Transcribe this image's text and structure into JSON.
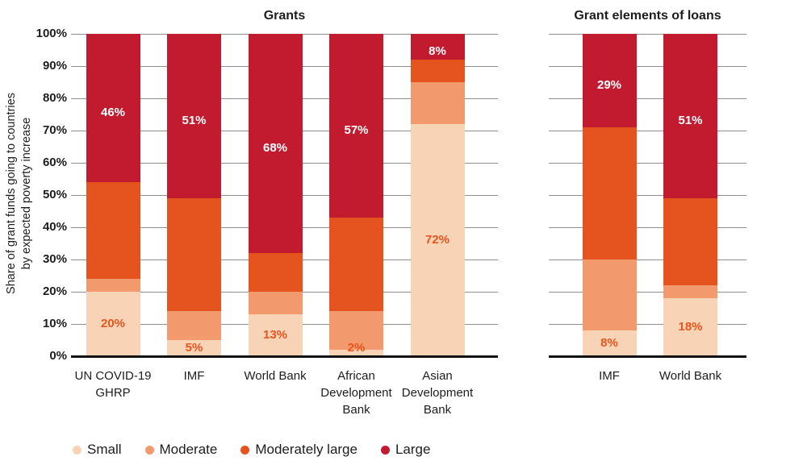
{
  "figure": {
    "background": "#ffffff",
    "text_color": "#1d1d1d",
    "gridline_color": "#8e8e8e",
    "axis_color": "#111111"
  },
  "y_axis": {
    "title_line1": "Share of grant funds going to countries",
    "title_line2": "by expected poverty increase",
    "ticks": [
      "100%",
      "90%",
      "80%",
      "70%",
      "60%",
      "50%",
      "40%",
      "30%",
      "20%",
      "10%",
      "0%"
    ],
    "range": [
      0,
      100
    ],
    "grid": true
  },
  "legend": {
    "position": "bottom-left",
    "items": [
      {
        "label": "Small",
        "color": "#f8d3b6"
      },
      {
        "label": "Moderate",
        "color": "#f29a6d"
      },
      {
        "label": "Moderately large",
        "color": "#e5531f"
      },
      {
        "label": "Large",
        "color": "#c21b2f"
      }
    ]
  },
  "chart_data": [
    {
      "type": "bar",
      "stacked": true,
      "title": "Grants",
      "ylim": [
        0,
        100
      ],
      "ylabel": "Share of grant funds going to countries by expected poverty increase",
      "categories": [
        "UN COVID-19 GHRP",
        "IMF",
        "World Bank",
        "African Development Bank",
        "Asian Development Bank"
      ],
      "category_label_lines": [
        [
          "UN COVID-19",
          "GHRP"
        ],
        [
          "IMF"
        ],
        [
          "World Bank"
        ],
        [
          "African",
          "Development",
          "Bank"
        ],
        [
          "Asian",
          "Development",
          "Bank"
        ]
      ],
      "series": [
        {
          "name": "Small",
          "color": "#f8d3b6",
          "values": [
            20,
            5,
            13,
            2,
            72
          ],
          "show_labels": true,
          "label_color": "#e7541d"
        },
        {
          "name": "Moderate",
          "color": "#f29a6d",
          "values": [
            4,
            9,
            7,
            12,
            13
          ],
          "show_labels": false
        },
        {
          "name": "Moderately large",
          "color": "#e5531f",
          "values": [
            30,
            35,
            12,
            29,
            7
          ],
          "show_labels": false
        },
        {
          "name": "Large",
          "color": "#c21b2f",
          "values": [
            46,
            51,
            68,
            57,
            8
          ],
          "show_labels": true,
          "label_color": "#ffffff"
        }
      ]
    },
    {
      "type": "bar",
      "stacked": true,
      "title": "Grant elements of loans",
      "ylim": [
        0,
        100
      ],
      "categories": [
        "IMF",
        "World Bank"
      ],
      "category_label_lines": [
        [
          "IMF"
        ],
        [
          "World Bank"
        ]
      ],
      "series": [
        {
          "name": "Small",
          "color": "#f8d3b6",
          "values": [
            8,
            18
          ],
          "show_labels": true,
          "label_color": "#e7541d"
        },
        {
          "name": "Moderate",
          "color": "#f29a6d",
          "values": [
            22,
            4
          ],
          "show_labels": false
        },
        {
          "name": "Moderately large",
          "color": "#e5531f",
          "values": [
            41,
            27
          ],
          "show_labels": false
        },
        {
          "name": "Large",
          "color": "#c21b2f",
          "values": [
            29,
            51
          ],
          "show_labels": true,
          "label_color": "#ffffff"
        }
      ]
    }
  ]
}
